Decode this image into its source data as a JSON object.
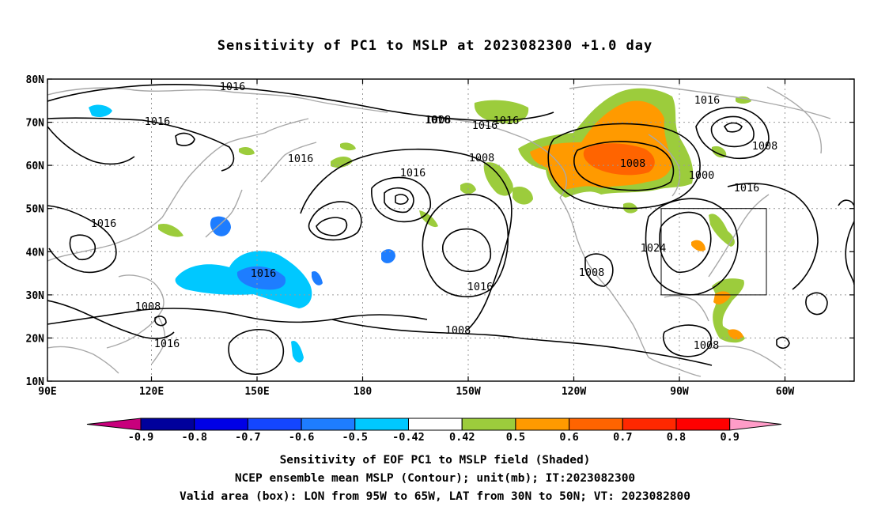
{
  "title": "Sensitivity of PC1 to MSLP at 2023082300 +1.0 day",
  "lat_labels": [
    "80N",
    "70N",
    "60N",
    "50N",
    "40N",
    "30N",
    "20N",
    "10N"
  ],
  "lon_labels": [
    "90E",
    "120E",
    "150E",
    "180",
    "150W",
    "120W",
    "90W",
    "60W"
  ],
  "contour_labels": [
    "1016",
    "1016",
    "1016",
    "1016",
    "1016",
    "1008",
    "1016",
    "1016",
    "1016",
    "1016",
    "1008",
    "1000",
    "1008",
    "1016",
    "1016",
    "1024",
    "1008",
    "1008",
    "1016",
    "1008",
    "1008",
    "1008",
    "1016"
  ],
  "colorbar": {
    "ticks": [
      "-0.9",
      "-0.8",
      "-0.7",
      "-0.6",
      "-0.5",
      "-0.42",
      "0.42",
      "0.5",
      "0.6",
      "0.7",
      "0.8",
      "0.9"
    ],
    "colors": [
      "#c8007c",
      "#00009c",
      "#0000e6",
      "#1446ff",
      "#1e7dff",
      "#00c8ff",
      "#ffffff",
      "#9ccc3c",
      "#ff9a00",
      "#ff6400",
      "#ff2800",
      "#ff0000",
      "#ff9cc8"
    ]
  },
  "captions": {
    "line1": "Sensitivity of EOF PC1 to MSLP field (Shaded)",
    "line2": "NCEP ensemble mean MSLP (Contour); unit(mb); IT:2023082300",
    "line3": "Valid area (box): LON from 95W to 65W, LAT from 30N to 50N; VT: 2023082800"
  }
}
